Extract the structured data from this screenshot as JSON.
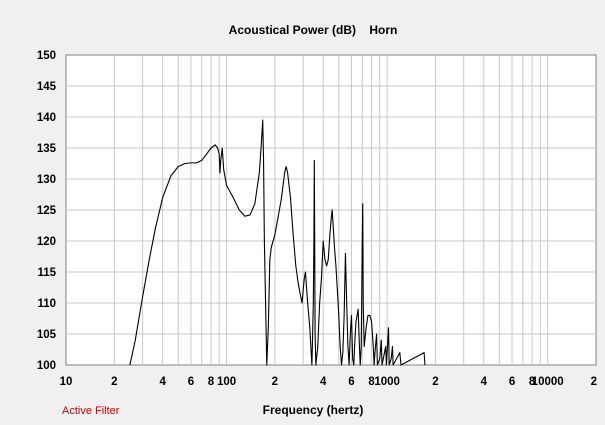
{
  "colors": {
    "background": "#f0f0f0",
    "plot_background": "#ffffff",
    "grid": "#c8c8c8",
    "curve": "#000000",
    "active_filter": "#cc0000"
  },
  "status": {
    "active_filter": "Active Filter"
  },
  "chart_data": {
    "type": "line",
    "title": "Acoustical Power (dB)    Horn",
    "xlabel": "Frequency (hertz)",
    "ylabel": "",
    "x_scale": "log",
    "xlim": [
      10,
      20000
    ],
    "ylim": [
      100,
      150
    ],
    "grid": true,
    "y_ticks": [
      "150",
      "145",
      "140",
      "135",
      "130",
      "125",
      "120",
      "115",
      "110",
      "105",
      "100"
    ],
    "x_ticks": [
      {
        "value": 10,
        "label": "10"
      },
      {
        "value": 20,
        "label": "2"
      },
      {
        "value": 40,
        "label": "4"
      },
      {
        "value": 60,
        "label": "6"
      },
      {
        "value": 80,
        "label": "8"
      },
      {
        "value": 100,
        "label": "100"
      },
      {
        "value": 200,
        "label": "2"
      },
      {
        "value": 400,
        "label": "4"
      },
      {
        "value": 600,
        "label": "6"
      },
      {
        "value": 800,
        "label": "8"
      },
      {
        "value": 1000,
        "label": "1000"
      },
      {
        "value": 2000,
        "label": "2"
      },
      {
        "value": 4000,
        "label": "4"
      },
      {
        "value": 6000,
        "label": "6"
      },
      {
        "value": 8000,
        "label": "8"
      },
      {
        "value": 10000,
        "label": "10000"
      },
      {
        "value": 20000,
        "label": "2"
      }
    ],
    "series": [
      {
        "points": [
          [
            25,
            100
          ],
          [
            27,
            104
          ],
          [
            30,
            111
          ],
          [
            33,
            117
          ],
          [
            36,
            122
          ],
          [
            40,
            127
          ],
          [
            45,
            130.5
          ],
          [
            50,
            132
          ],
          [
            55,
            132.5
          ],
          [
            60,
            132.6
          ],
          [
            65,
            132.6
          ],
          [
            70,
            133
          ],
          [
            75,
            134
          ],
          [
            80,
            135
          ],
          [
            85,
            135.5
          ],
          [
            88,
            135
          ],
          [
            90,
            134
          ],
          [
            91,
            131
          ],
          [
            92,
            133
          ],
          [
            94,
            135
          ],
          [
            96,
            131.5
          ],
          [
            100,
            129
          ],
          [
            110,
            127
          ],
          [
            120,
            125
          ],
          [
            130,
            124
          ],
          [
            140,
            124.2
          ],
          [
            150,
            126
          ],
          [
            160,
            131
          ],
          [
            165,
            136
          ],
          [
            168,
            139.5
          ],
          [
            170,
            133
          ],
          [
            172,
            120
          ],
          [
            175,
            110
          ],
          [
            178,
            100
          ],
          [
            182,
            106
          ],
          [
            186,
            117
          ],
          [
            190,
            119
          ],
          [
            200,
            121
          ],
          [
            210,
            124
          ],
          [
            220,
            127
          ],
          [
            230,
            131
          ],
          [
            235,
            132
          ],
          [
            240,
            131
          ],
          [
            250,
            127
          ],
          [
            260,
            121
          ],
          [
            270,
            116
          ],
          [
            280,
            113
          ],
          [
            290,
            111
          ],
          [
            295,
            110
          ],
          [
            300,
            112
          ],
          [
            305,
            114
          ],
          [
            310,
            115
          ],
          [
            320,
            110
          ],
          [
            330,
            106
          ],
          [
            340,
            100
          ],
          [
            343,
            104
          ],
          [
            347,
            110
          ],
          [
            350,
            120
          ],
          [
            352,
            133
          ],
          [
            354,
            120
          ],
          [
            356,
            105
          ],
          [
            360,
            100
          ],
          [
            370,
            103
          ],
          [
            380,
            110
          ],
          [
            390,
            114
          ],
          [
            400,
            120
          ],
          [
            410,
            117
          ],
          [
            420,
            116
          ],
          [
            430,
            117
          ],
          [
            440,
            121
          ],
          [
            450,
            124
          ],
          [
            455,
            125
          ],
          [
            460,
            123
          ],
          [
            470,
            119
          ],
          [
            480,
            116
          ],
          [
            490,
            112
          ],
          [
            500,
            108
          ],
          [
            510,
            103
          ],
          [
            520,
            100
          ],
          [
            530,
            102
          ],
          [
            540,
            108
          ],
          [
            550,
            118
          ],
          [
            560,
            110
          ],
          [
            570,
            103
          ],
          [
            580,
            100
          ],
          [
            590,
            105
          ],
          [
            600,
            108
          ],
          [
            610,
            101
          ],
          [
            620,
            100
          ],
          [
            630,
            104
          ],
          [
            640,
            107
          ],
          [
            660,
            109
          ],
          [
            670,
            104
          ],
          [
            680,
            100
          ],
          [
            690,
            103
          ],
          [
            700,
            120
          ],
          [
            705,
            126
          ],
          [
            710,
            110
          ],
          [
            720,
            103
          ],
          [
            740,
            106
          ],
          [
            760,
            108
          ],
          [
            780,
            108
          ],
          [
            800,
            107
          ],
          [
            820,
            103
          ],
          [
            830,
            100
          ],
          [
            840,
            102
          ],
          [
            860,
            105
          ],
          [
            870,
            100
          ],
          [
            900,
            101
          ],
          [
            920,
            104
          ],
          [
            930,
            100
          ],
          [
            980,
            103
          ],
          [
            990,
            100
          ],
          [
            1020,
            106
          ],
          [
            1030,
            100
          ],
          [
            1060,
            101
          ],
          [
            1080,
            103
          ],
          [
            1090,
            100
          ],
          [
            1200,
            102
          ],
          [
            1220,
            100
          ],
          [
            1700,
            102
          ],
          [
            1720,
            100
          ]
        ]
      }
    ]
  }
}
